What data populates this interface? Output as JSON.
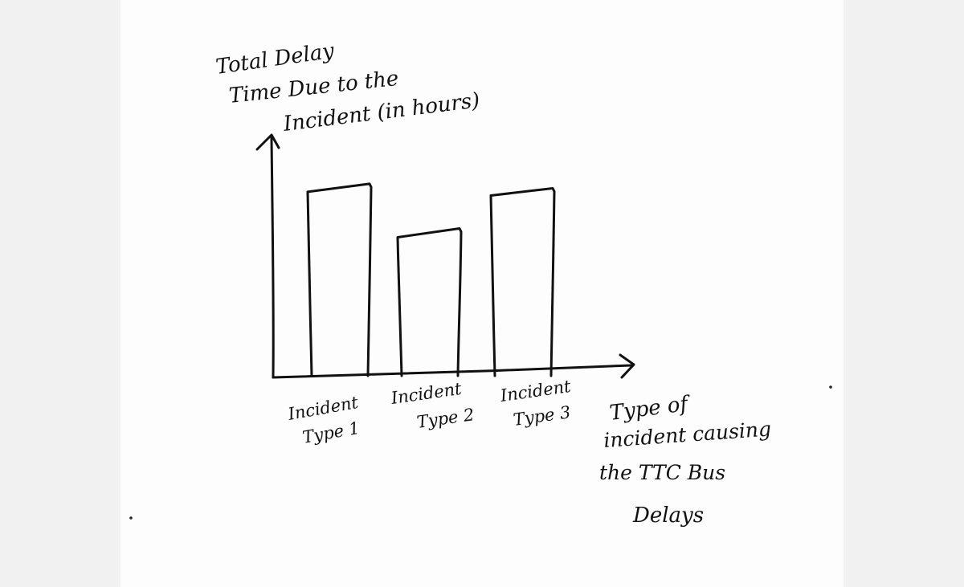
{
  "chart_data": {
    "type": "bar",
    "ylabel": [
      "Total Delay",
      "Time Due to the",
      "Incident (in hours)"
    ],
    "xlabel": [
      "Type of",
      "incident causing",
      "the TTC Bus",
      "Delays"
    ],
    "categories": [
      [
        "Incident",
        "Type 1"
      ],
      [
        "Incident",
        "Type 2"
      ],
      [
        "Incident",
        "Type 3"
      ]
    ],
    "values": [
      86,
      66,
      84
    ],
    "ylim": [
      0,
      110
    ],
    "axis_values_printed": false,
    "grid": false,
    "style": "hand-drawn sketch, black ink on white"
  },
  "colors": {
    "ink": "#111111",
    "paper": "#fdfdfd",
    "margin": "#f1f1f1"
  }
}
